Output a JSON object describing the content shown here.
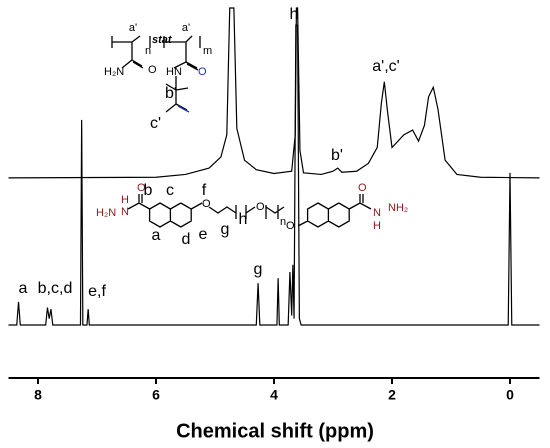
{
  "chart_data": {
    "type": "line",
    "xlabel": "Chemical shift (ppm)",
    "xlim": [
      8.5,
      -0.5
    ],
    "xticks": [
      8,
      6,
      4,
      2,
      0
    ],
    "ylim": [
      0,
      100
    ],
    "grid": false,
    "series": [
      {
        "color": "#000000",
        "x": [
          8.5,
          6.0,
          5.5,
          5.1,
          4.9,
          4.8,
          4.75,
          4.72,
          4.68,
          4.63,
          4.5,
          4.3,
          4.0,
          3.7,
          3.64,
          3.62,
          3.6,
          3.56,
          3.5,
          3.2,
          3.0,
          2.92,
          2.85,
          2.6,
          2.4,
          2.25,
          2.18,
          2.13,
          2.08,
          2.0,
          1.8,
          1.65,
          1.55,
          1.45,
          1.38,
          1.3,
          1.22,
          1.1,
          0.9,
          0.5,
          -0.5
        ],
        "values": [
          46.4,
          46.6,
          47.5,
          49.5,
          53,
          60,
          100,
          100,
          100,
          62,
          52,
          49,
          47.8,
          48.5,
          60,
          100,
          100,
          55,
          48,
          47.5,
          48.5,
          49.5,
          48.2,
          48.5,
          51,
          56,
          70,
          76.7,
          68,
          56,
          60,
          61.5,
          58,
          63,
          72,
          75,
          68,
          52,
          47.5,
          46.6,
          46.4
        ]
      },
      {
        "color": "#000000",
        "x": [
          8.5,
          8.36,
          8.33,
          8.3,
          7.87,
          7.84,
          7.81,
          7.78,
          7.75,
          7.28,
          7.26,
          7.24,
          7.17,
          7.15,
          7.13,
          4.3,
          4.27,
          4.24,
          3.95,
          3.93,
          3.91,
          3.76,
          3.73,
          3.7,
          3.68,
          3.66,
          3.63,
          3.6,
          3.57,
          3.54,
          0.03,
          0.0,
          -0.03,
          -0.5
        ],
        "values": [
          0,
          0,
          7.3,
          0,
          0,
          5.5,
          2,
          5,
          0,
          0,
          64.7,
          0,
          0,
          5,
          0,
          0,
          13.2,
          0,
          0,
          14.8,
          0,
          0,
          16.7,
          3,
          19,
          2,
          94.6,
          94.6,
          2,
          0,
          0,
          48,
          0,
          0
        ]
      }
    ],
    "peak_labels": [
      "h",
      "a',c'",
      "b'",
      "a",
      "b,c,d",
      "e,f",
      "g"
    ],
    "polymer_labels": [
      "a'",
      "n",
      "stat",
      "a'",
      "m",
      "H₂N",
      "O",
      "HN",
      "b'",
      "O",
      "c'"
    ],
    "crosslinker_labels": [
      "H₂N",
      "N",
      "H",
      "O",
      "b",
      "c",
      "f",
      "a",
      "d",
      "e",
      "O",
      "g",
      "h",
      "O",
      "n",
      "O",
      "O",
      "N",
      "H",
      "NH₂"
    ]
  }
}
